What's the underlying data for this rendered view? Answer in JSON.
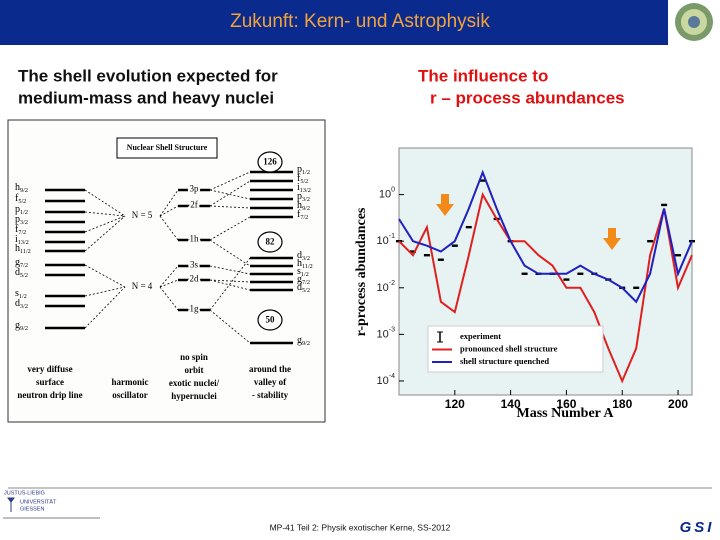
{
  "header": {
    "title": "Zukunft: Kern- und Astrophysik"
  },
  "left": {
    "heading": [
      "The shell evolution expected for",
      "medium-mass and heavy nuclei"
    ],
    "diagram": {
      "title": "Nuclear Shell Structure",
      "left_levels": [
        [
          "h",
          "9/2"
        ],
        [
          "f",
          "5/2"
        ],
        [
          "p",
          "1/2"
        ],
        [
          "p",
          "3/2"
        ],
        [
          "f",
          "7/2"
        ],
        [
          "i",
          "13/2"
        ],
        [
          "h",
          "11/2"
        ],
        [
          "g",
          "7/2"
        ],
        [
          "d",
          "5/2"
        ],
        [
          "s",
          "1/2"
        ],
        [
          "d",
          "3/2"
        ],
        [
          "g",
          "9/2"
        ]
      ],
      "oscillator_levels": [
        "3p",
        "2f",
        "1h",
        "3s",
        "2d",
        "1g"
      ],
      "shells": [
        "N = 5",
        "N = 4"
      ],
      "magic_numbers": [
        "126",
        "82",
        "50"
      ],
      "right_levels": [
        [
          "p",
          "1/2"
        ],
        [
          "f",
          "5/2"
        ],
        [
          "i",
          "13/2"
        ],
        [
          "p",
          "3/2"
        ],
        [
          "h",
          "9/2"
        ],
        [
          "f",
          "7/2"
        ],
        [
          "d",
          "3/2"
        ],
        [
          "h",
          "11/2"
        ],
        [
          "s",
          "1/2"
        ],
        [
          "g",
          "7/2"
        ],
        [
          "d",
          "5/2"
        ],
        [
          "g",
          "9/2"
        ]
      ],
      "captions": [
        [
          "very diffuse",
          "surface",
          "neutron drip line"
        ],
        [
          "harmonic",
          "oscillator"
        ],
        [
          "no spin",
          "orbit",
          "exotic nuclei/",
          "hypernuclei"
        ],
        [
          "around the",
          "valley of",
          "- stability"
        ]
      ]
    }
  },
  "right": {
    "heading": [
      "The influence to",
      "r – process abundances"
    ]
  },
  "chart_data": {
    "type": "line",
    "xlabel": "Mass Number A",
    "ylabel": "r-process abundances",
    "log_y": true,
    "xlim": [
      100,
      205
    ],
    "xticks": [
      120,
      140,
      160,
      180,
      200
    ],
    "ylim": [
      5e-05,
      10
    ],
    "yticks": [
      {
        "value": 1,
        "label": "10",
        "exponent": "0"
      },
      {
        "value": 0.1,
        "label": "10",
        "exponent": "-1"
      },
      {
        "value": 0.01,
        "label": "10",
        "exponent": "-2"
      },
      {
        "value": 0.001,
        "label": "10",
        "exponent": "-3"
      },
      {
        "value": 0.0001,
        "label": "10",
        "exponent": "-4"
      }
    ],
    "x": [
      100,
      105,
      110,
      115,
      120,
      125,
      130,
      135,
      140,
      145,
      150,
      155,
      160,
      165,
      170,
      175,
      180,
      185,
      190,
      195,
      200,
      205
    ],
    "series": [
      {
        "name": "experiment",
        "color": "#000000",
        "style": "points",
        "values": [
          0.1,
          0.06,
          0.05,
          0.04,
          0.08,
          0.2,
          2,
          0.3,
          0.1,
          0.02,
          0.02,
          0.02,
          0.015,
          0.02,
          0.02,
          0.015,
          0.01,
          0.01,
          0.1,
          0.6,
          0.05,
          0.1
        ]
      },
      {
        "name": "pronounced shell structure",
        "color": "#e02020",
        "style": "line",
        "values": [
          0.1,
          0.05,
          0.2,
          0.005,
          0.003,
          0.05,
          1,
          0.3,
          0.1,
          0.1,
          0.05,
          0.03,
          0.01,
          0.01,
          0.003,
          0.0005,
          0.0001,
          0.0005,
          0.05,
          0.5,
          0.01,
          0.05
        ]
      },
      {
        "name": "shell structure quenched",
        "color": "#2020c0",
        "style": "line",
        "values": [
          0.3,
          0.1,
          0.08,
          0.06,
          0.1,
          0.5,
          3,
          0.5,
          0.1,
          0.03,
          0.02,
          0.02,
          0.02,
          0.03,
          0.02,
          0.015,
          0.01,
          0.005,
          0.02,
          0.5,
          0.02,
          0.1
        ]
      }
    ]
  },
  "footer": {
    "university": [
      "JUSTUS-LIEBIG",
      "UNIVERSITÄT",
      "GIESSEN"
    ],
    "course": "MP-41 Teil 2: Physik exotischer Kerne, SS-2012",
    "lab": "GSI"
  }
}
